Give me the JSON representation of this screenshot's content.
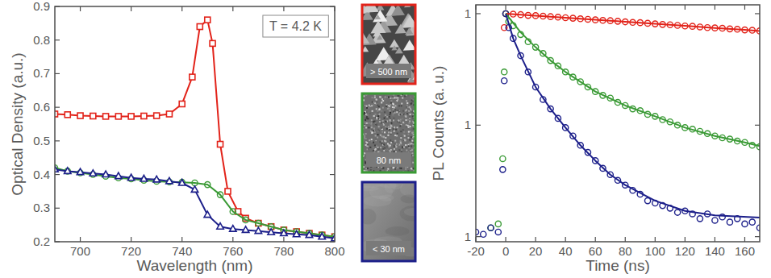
{
  "chart_data": [
    {
      "type": "line",
      "x_label": "Wavelength (nm)",
      "y_label": "Optical Density (a.u.)",
      "annotations": [
        "T = 4.2 K"
      ],
      "xlim": [
        690,
        800
      ],
      "xticks": [
        700,
        720,
        740,
        760,
        780,
        800
      ],
      "ylim": [
        0.2,
        0.9
      ],
      "yticks": [
        0.2,
        0.3,
        0.4,
        0.5,
        0.6,
        0.7,
        0.8,
        0.9
      ],
      "grid": false,
      "series": [
        {
          "color": "#e2231a",
          "marker": "square",
          "line_style": "solid",
          "x": [
            690,
            695,
            700,
            705,
            710,
            715,
            720,
            725,
            730,
            735,
            740,
            744,
            747,
            750,
            752,
            755,
            758,
            762,
            765,
            770,
            775,
            780,
            785,
            790,
            795,
            800
          ],
          "values": [
            0.58,
            0.578,
            0.575,
            0.574,
            0.573,
            0.573,
            0.573,
            0.574,
            0.575,
            0.58,
            0.61,
            0.69,
            0.84,
            0.86,
            0.79,
            0.49,
            0.35,
            0.29,
            0.27,
            0.255,
            0.245,
            0.235,
            0.23,
            0.225,
            0.22,
            0.215
          ]
        },
        {
          "color": "#3a9a35",
          "marker": "circle",
          "line_style": "solid",
          "x": [
            690,
            695,
            700,
            705,
            710,
            715,
            720,
            725,
            730,
            735,
            740,
            745,
            750,
            755,
            760,
            765,
            770,
            775,
            780,
            785,
            790,
            795,
            800
          ],
          "values": [
            0.42,
            0.41,
            0.405,
            0.4,
            0.395,
            0.39,
            0.387,
            0.383,
            0.38,
            0.378,
            0.377,
            0.375,
            0.37,
            0.34,
            0.29,
            0.265,
            0.255,
            0.245,
            0.235,
            0.23,
            0.225,
            0.22,
            0.215
          ]
        },
        {
          "color": "#1c1f8a",
          "marker": "triangle",
          "line_style": "solid",
          "x": [
            690,
            695,
            700,
            705,
            710,
            715,
            720,
            725,
            730,
            735,
            740,
            745,
            750,
            755,
            760,
            765,
            770,
            775,
            780,
            785,
            790,
            795,
            800
          ],
          "values": [
            0.415,
            0.41,
            0.407,
            0.403,
            0.4,
            0.395,
            0.39,
            0.387,
            0.385,
            0.38,
            0.375,
            0.355,
            0.28,
            0.245,
            0.238,
            0.235,
            0.232,
            0.228,
            0.225,
            0.222,
            0.22,
            0.215,
            0.21
          ]
        }
      ]
    },
    {
      "type": "scatter",
      "x_label": "Time (ns)",
      "y_label": "PL Counts (a. u.)",
      "log": "y",
      "xlim": [
        -20,
        170
      ],
      "xticks": [
        -20,
        0,
        20,
        40,
        60,
        80,
        100,
        120,
        140,
        160
      ],
      "ylim": [
        0.009,
        1.2
      ],
      "yticks": [
        {
          "value": 0.01,
          "label": "1"
        },
        {
          "value": 0.1,
          "label": "1"
        },
        1
      ],
      "grid": false,
      "series": [
        {
          "type": "scatter",
          "color": "#e2231a",
          "marker": "circle",
          "line_style": "none",
          "x": [
            -1,
            0,
            5,
            10,
            15,
            20,
            25,
            30,
            35,
            40,
            45,
            50,
            55,
            60,
            65,
            70,
            75,
            80,
            85,
            90,
            95,
            100,
            105,
            110,
            115,
            120,
            125,
            130,
            135,
            140,
            145,
            150,
            155,
            160,
            165,
            170
          ],
          "values": [
            0.75,
            1.0,
            0.99,
            0.98,
            0.965,
            0.96,
            0.95,
            0.94,
            0.93,
            0.92,
            0.91,
            0.9,
            0.89,
            0.88,
            0.87,
            0.865,
            0.855,
            0.845,
            0.835,
            0.83,
            0.82,
            0.81,
            0.8,
            0.795,
            0.785,
            0.775,
            0.77,
            0.76,
            0.75,
            0.745,
            0.74,
            0.73,
            0.725,
            0.715,
            0.71,
            0.7
          ]
        },
        {
          "type": "scatter",
          "color": "#3a9a35",
          "marker": "circle",
          "line_style": "none",
          "x": [
            -10,
            -5,
            -2,
            -1,
            0,
            2,
            5,
            10,
            15,
            20,
            25,
            30,
            35,
            40,
            45,
            50,
            55,
            60,
            65,
            70,
            75,
            80,
            85,
            90,
            95,
            100,
            105,
            110,
            115,
            120,
            125,
            130,
            135,
            140,
            145,
            150,
            155,
            160,
            165,
            170
          ],
          "values": [
            0.012,
            0.013,
            0.05,
            0.3,
            1.0,
            0.85,
            0.78,
            0.65,
            0.56,
            0.5,
            0.44,
            0.38,
            0.34,
            0.3,
            0.27,
            0.245,
            0.22,
            0.2,
            0.185,
            0.175,
            0.16,
            0.15,
            0.14,
            0.135,
            0.125,
            0.12,
            0.112,
            0.107,
            0.1,
            0.095,
            0.092,
            0.088,
            0.084,
            0.08,
            0.077,
            0.075,
            0.072,
            0.07,
            0.066,
            0.064
          ]
        },
        {
          "type": "scatter",
          "color": "#1c1f8a",
          "marker": "circle",
          "line_style": "none",
          "x": [
            -20,
            -15,
            -10,
            -5,
            -2,
            -1,
            0,
            2,
            5,
            10,
            15,
            20,
            25,
            30,
            35,
            40,
            45,
            50,
            55,
            60,
            65,
            70,
            75,
            80,
            85,
            90,
            95,
            100,
            105,
            110,
            115,
            120,
            125,
            130,
            135,
            140,
            145,
            150,
            155,
            160,
            165,
            170
          ],
          "values": [
            0.011,
            0.0105,
            0.012,
            0.011,
            0.04,
            0.25,
            1.0,
            0.75,
            0.6,
            0.42,
            0.3,
            0.22,
            0.17,
            0.14,
            0.115,
            0.095,
            0.08,
            0.066,
            0.057,
            0.048,
            0.041,
            0.036,
            0.032,
            0.029,
            0.026,
            0.024,
            0.021,
            0.02,
            0.019,
            0.018,
            0.0165,
            0.017,
            0.016,
            0.0145,
            0.016,
            0.014,
            0.015,
            0.0135,
            0.0145,
            0.013,
            0.0135,
            0.012
          ]
        },
        {
          "type": "line",
          "color": "#e2231a",
          "marker": "none",
          "line_style": "solid",
          "x": [
            0,
            20,
            40,
            60,
            80,
            100,
            120,
            140,
            160,
            170
          ],
          "values": [
            1.0,
            0.959,
            0.92,
            0.882,
            0.846,
            0.811,
            0.777,
            0.745,
            0.715,
            0.7
          ]
        },
        {
          "type": "line",
          "color": "#3a9a35",
          "marker": "none",
          "line_style": "solid",
          "x": [
            0,
            10,
            20,
            30,
            40,
            60,
            80,
            100,
            120,
            140,
            160,
            170
          ],
          "values": [
            1.0,
            0.68,
            0.5,
            0.38,
            0.3,
            0.2,
            0.15,
            0.12,
            0.095,
            0.08,
            0.07,
            0.065
          ]
        },
        {
          "type": "line",
          "color": "#1c1f8a",
          "marker": "none",
          "line_style": "solid",
          "x": [
            0,
            5,
            10,
            20,
            30,
            40,
            50,
            60,
            70,
            80,
            100,
            120,
            140,
            170
          ],
          "values": [
            1.0,
            0.6,
            0.42,
            0.22,
            0.14,
            0.095,
            0.066,
            0.048,
            0.036,
            0.029,
            0.021,
            0.017,
            0.0155,
            0.0148
          ]
        }
      ]
    }
  ],
  "images": [
    {
      "label": "> 500 nm",
      "color": "#e2231a"
    },
    {
      "label": "80 nm",
      "color": "#3a9a35"
    },
    {
      "label": "< 30 nm",
      "color": "#1c1f8a"
    }
  ]
}
